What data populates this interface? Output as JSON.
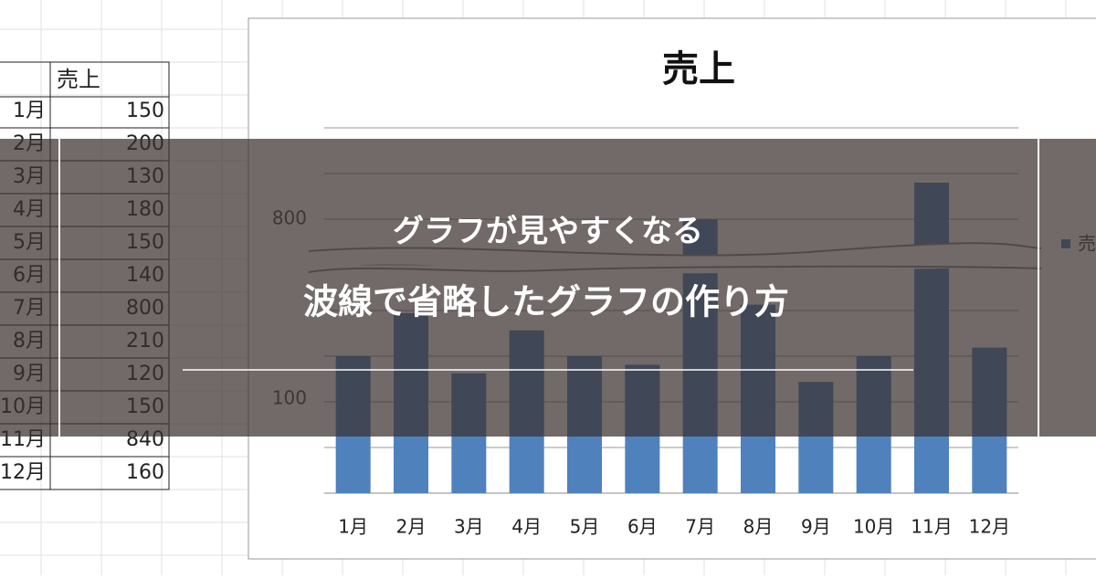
{
  "sheet": {
    "header": "売上",
    "rows": [
      {
        "month": "1月",
        "sales": 150
      },
      {
        "month": "2月",
        "sales": 200
      },
      {
        "month": "3月",
        "sales": 130
      },
      {
        "month": "4月",
        "sales": 180
      },
      {
        "month": "5月",
        "sales": 150
      },
      {
        "month": "6月",
        "sales": 140
      },
      {
        "month": "7月",
        "sales": 800
      },
      {
        "month": "8月",
        "sales": 210
      },
      {
        "month": "9月",
        "sales": 120
      },
      {
        "month": "10月",
        "sales": 150
      },
      {
        "month": "11月",
        "sales": 840
      },
      {
        "month": "12月",
        "sales": 160
      }
    ]
  },
  "chart": {
    "title": "売上",
    "yticks": [
      800,
      100
    ],
    "legend": "売",
    "categories": [
      "1月",
      "2月",
      "3月",
      "4月",
      "5月",
      "6月",
      "7月",
      "8月",
      "9月",
      "10月",
      "11月",
      "12月"
    ]
  },
  "overlay": {
    "line1": "グラフが見やすくなる",
    "line2": "波線で省略したグラフの作り方"
  }
}
